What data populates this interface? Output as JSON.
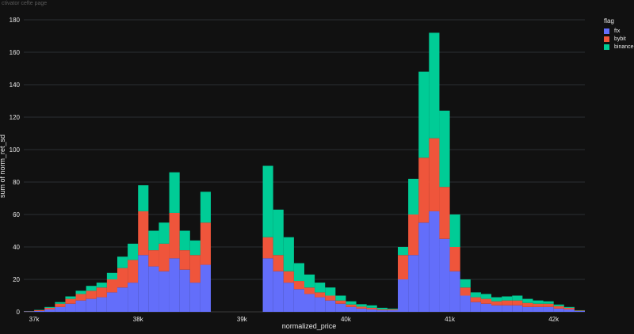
{
  "page": {
    "caption": "ctivator cefte page"
  },
  "legend": {
    "title": "flag",
    "items": [
      {
        "name": "ftx",
        "color": "#636efa"
      },
      {
        "name": "bybit",
        "color": "#ef553b"
      },
      {
        "name": "binance",
        "color": "#00cc96"
      }
    ]
  },
  "chart_data": {
    "type": "bar",
    "stacked": true,
    "xlabel": "normalized_price",
    "ylabel": "sum of norm_ret_sd",
    "ylim": [
      0,
      180
    ],
    "xlim": [
      36900,
      42300
    ],
    "x_ticks": [
      {
        "value": 37000,
        "label": "37k"
      },
      {
        "value": 38000,
        "label": "38k"
      },
      {
        "value": 39000,
        "label": "39k"
      },
      {
        "value": 40000,
        "label": "40k"
      },
      {
        "value": 41000,
        "label": "41k"
      },
      {
        "value": 42000,
        "label": "42k"
      }
    ],
    "y_ticks": [
      0,
      20,
      40,
      60,
      80,
      100,
      120,
      140,
      160,
      180
    ],
    "grid": true,
    "legend_position": "top-right",
    "bar_width": 20,
    "x": [
      36950,
      37050,
      37150,
      37250,
      37350,
      37450,
      37550,
      37650,
      37750,
      37850,
      37950,
      38050,
      38150,
      38250,
      38350,
      38450,
      38550,
      38650,
      39150,
      39250,
      39350,
      39450,
      39550,
      39650,
      39750,
      39850,
      39950,
      40050,
      40150,
      40250,
      40350,
      40450,
      40550,
      40650,
      40750,
      40850,
      40950,
      41050,
      41150,
      41250,
      41350,
      41450,
      41550,
      41650,
      41750,
      41850,
      41950,
      42050,
      42150,
      42250
    ],
    "series": [
      {
        "name": "ftx",
        "values": [
          0.2,
          0.5,
          1.5,
          3,
          5,
          7,
          8,
          9,
          12,
          15,
          18,
          35,
          28,
          25,
          33,
          26,
          18,
          29,
          0,
          33,
          25,
          18,
          14,
          11,
          9,
          7,
          5,
          3,
          2,
          1.5,
          1,
          1,
          20,
          35,
          55,
          62,
          45,
          25,
          10,
          6,
          5,
          4,
          4,
          4,
          3,
          3,
          3,
          2,
          1.5,
          0.5
        ]
      },
      {
        "name": "bybit",
        "values": [
          0.2,
          0.5,
          1,
          2,
          3,
          4,
          5,
          6,
          8,
          12,
          14,
          27,
          10,
          17,
          28,
          12,
          17,
          26,
          0,
          13,
          10,
          7,
          5,
          4,
          3,
          3,
          2,
          1.5,
          1.2,
          1,
          0.5,
          0.5,
          15,
          25,
          40,
          45,
          32,
          15,
          5,
          3,
          3,
          2.5,
          3,
          3,
          2.5,
          2,
          2,
          1.5,
          1,
          0.3
        ]
      },
      {
        "name": "binance",
        "values": [
          0.1,
          0.2,
          0.5,
          1,
          1.5,
          2,
          3,
          3,
          4,
          7,
          10,
          16,
          12,
          13,
          25,
          12,
          9,
          19,
          0,
          44,
          28,
          21,
          11,
          8,
          6,
          5,
          3,
          2,
          1.5,
          1.5,
          1,
          0.5,
          5,
          22,
          53,
          65,
          47,
          20,
          5,
          3,
          3,
          2.5,
          2.5,
          3,
          2.5,
          2,
          1.5,
          1,
          0.5,
          0.2
        ]
      }
    ]
  }
}
